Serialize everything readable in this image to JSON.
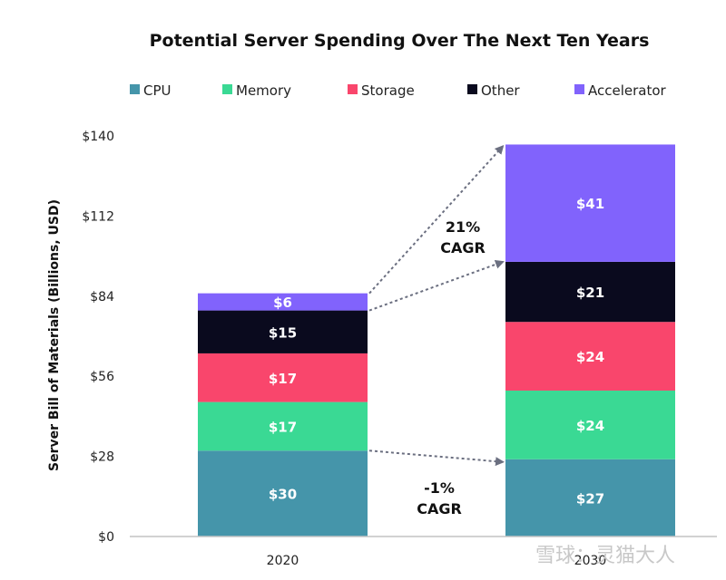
{
  "chart_data": {
    "type": "bar",
    "stacked": true,
    "title": "Potential Server Spending Over The Next Ten Years",
    "xlabel": "",
    "ylabel": "Server Bill of Materials (Billions, USD)",
    "categories": [
      "2020",
      "2030"
    ],
    "ylim": [
      0,
      140
    ],
    "yticks": [
      0,
      28,
      56,
      84,
      112,
      140
    ],
    "ytick_labels": [
      "$0",
      "$28",
      "$56",
      "$84",
      "$112",
      "$140"
    ],
    "grid": false,
    "legend_position": "top",
    "series": [
      {
        "name": "CPU",
        "color": "#4595aa",
        "values": [
          30,
          27
        ],
        "labels": [
          "$30",
          "$27"
        ]
      },
      {
        "name": "Memory",
        "color": "#3ad994",
        "values": [
          17,
          24
        ],
        "labels": [
          "$17",
          "$24"
        ]
      },
      {
        "name": "Storage",
        "color": "#f9466c",
        "values": [
          17,
          24
        ],
        "labels": [
          "$17",
          "$24"
        ]
      },
      {
        "name": "Other",
        "color": "#0a0a1e",
        "values": [
          15,
          21
        ],
        "labels": [
          "$15",
          "$21"
        ]
      },
      {
        "name": "Accelerator",
        "color": "#8163fc",
        "values": [
          6,
          41
        ],
        "labels": [
          "$6",
          "$41"
        ]
      }
    ],
    "annotations": [
      {
        "text_line1": "21%",
        "text_line2": "CAGR",
        "from": "2020 Other+Accelerator",
        "to": "2030 Other+Accelerator"
      },
      {
        "text_line1": "-1%",
        "text_line2": "CAGR",
        "from": "2020 CPU",
        "to": "2030 CPU"
      }
    ]
  },
  "watermark": "雪球：灵猫大人"
}
